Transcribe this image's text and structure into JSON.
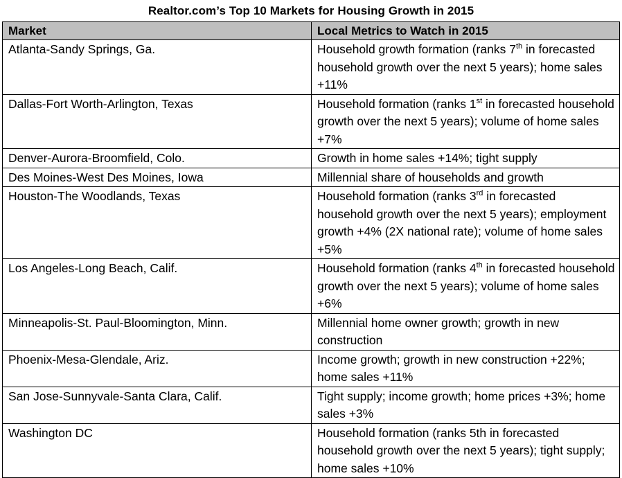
{
  "title": "Realtor.com’s Top 10 Markets for Housing Growth in 2015",
  "headers": {
    "market": "Market",
    "metrics": "Local Metrics to Watch in 2015"
  },
  "rows": [
    {
      "market": "Atlanta-Sandy Springs, Ga.",
      "metrics": [
        "Household growth formation (ranks 7",
        "th",
        " in forecasted household growth over the next 5 years); home sales +11%"
      ]
    },
    {
      "market": "Dallas-Fort Worth-Arlington, Texas",
      "metrics": [
        "Household formation (ranks 1",
        "st",
        " in forecasted household growth over the next 5 years); volume of home sales +7%"
      ]
    },
    {
      "market": "Denver-Aurora-Broomfield, Colo.",
      "metrics": [
        "Growth in home sales +14%; tight supply",
        "",
        ""
      ]
    },
    {
      "market": "Des Moines-West Des Moines, Iowa",
      "metrics": [
        "Millennial share of households and growth",
        "",
        ""
      ]
    },
    {
      "market": "Houston-The Woodlands, Texas",
      "metrics": [
        "Household formation (ranks 3",
        "rd",
        " in forecasted household growth over the next 5 years); employment growth +4% (2X national rate); volume of home sales +5%"
      ]
    },
    {
      "market": "Los Angeles-Long Beach, Calif.",
      "metrics": [
        "Household formation (ranks 4",
        "th",
        " in forecasted household growth over the next 5 years); volume of home sales +6%"
      ]
    },
    {
      "market": "Minneapolis-St. Paul-Bloomington, Minn.",
      "metrics": [
        "Millennial home owner growth; growth in new construction",
        "",
        ""
      ]
    },
    {
      "market": "Phoenix-Mesa-Glendale, Ariz.",
      "metrics": [
        "Income growth; growth in new construction +22%; home sales +11%",
        "",
        ""
      ]
    },
    {
      "market": "San Jose-Sunnyvale-Santa Clara, Calif.",
      "metrics": [
        "Tight supply; income growth; home prices +3%; home sales +3%",
        "",
        ""
      ]
    },
    {
      "market": "Washington DC",
      "metrics": [
        "Household formation (ranks 5th in forecasted household growth over the next 5 years); tight supply;  home sales +10%",
        "",
        ""
      ]
    }
  ]
}
